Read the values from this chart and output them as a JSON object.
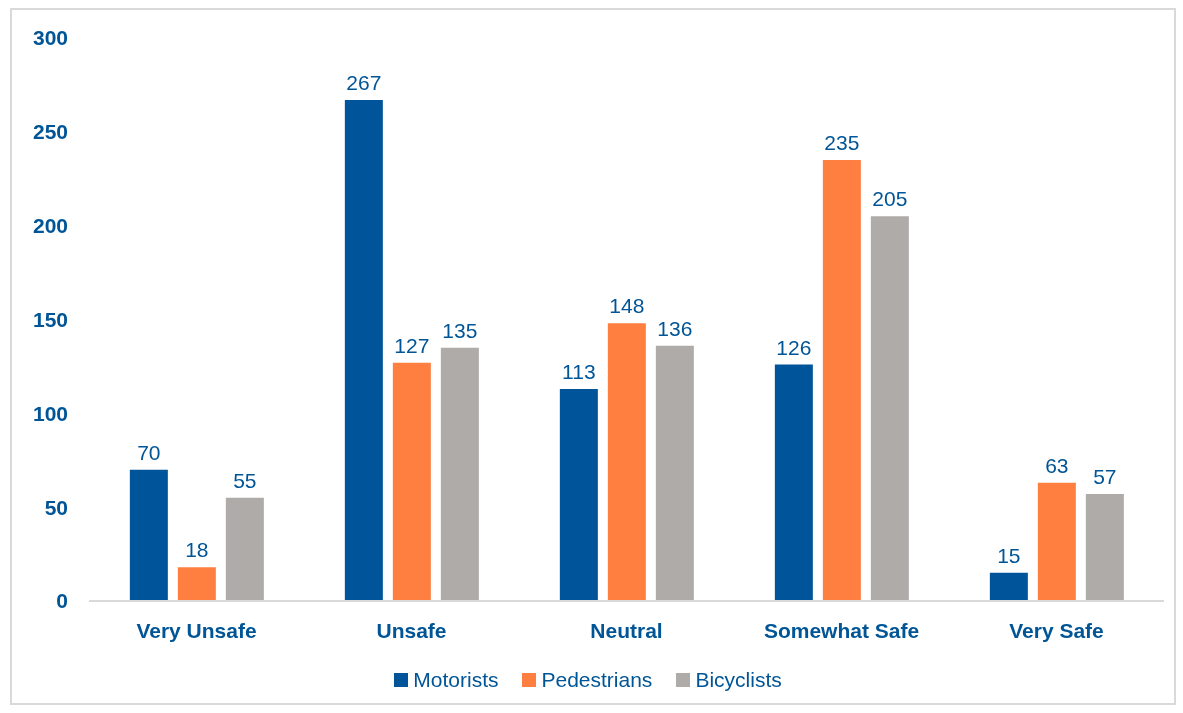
{
  "chart_data": {
    "type": "bar",
    "categories": [
      "Very Unsafe",
      "Unsafe",
      "Neutral",
      "Somewhat Safe",
      "Very Safe"
    ],
    "series": [
      {
        "name": "Motorists",
        "color": "#00559a",
        "values": [
          70,
          267,
          113,
          126,
          15
        ]
      },
      {
        "name": "Pedestrians",
        "color": "#ff7f41",
        "values": [
          18,
          127,
          148,
          235,
          63
        ]
      },
      {
        "name": "Bicyclists",
        "color": "#afaba9",
        "values": [
          55,
          135,
          136,
          205,
          57
        ]
      }
    ],
    "ylim": [
      0,
      300
    ],
    "yticks": [
      0,
      50,
      100,
      150,
      200,
      250,
      300
    ],
    "legend": "bottom",
    "data_labels": true
  }
}
